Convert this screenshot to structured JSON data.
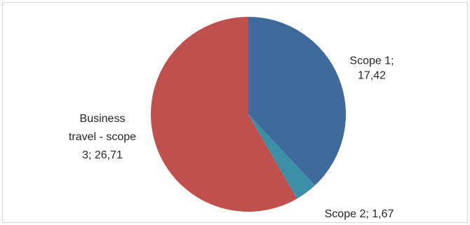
{
  "chart_data": {
    "type": "pie",
    "slices": [
      {
        "name": "Scope 1",
        "value": 17.42,
        "label_lines": [
          "Scope 1;",
          "17,42"
        ],
        "color": "#3e6a9c"
      },
      {
        "name": "Scope 2",
        "value": 1.67,
        "label_lines": [
          "Scope 2; 1,67"
        ],
        "color": "#3a8ea6"
      },
      {
        "name": "Business travel - scope 3",
        "value": 26.71,
        "label_lines": [
          "Business",
          "travel - scope",
          "3; 26,71"
        ],
        "color": "#c0504d"
      }
    ],
    "legend": "none"
  }
}
